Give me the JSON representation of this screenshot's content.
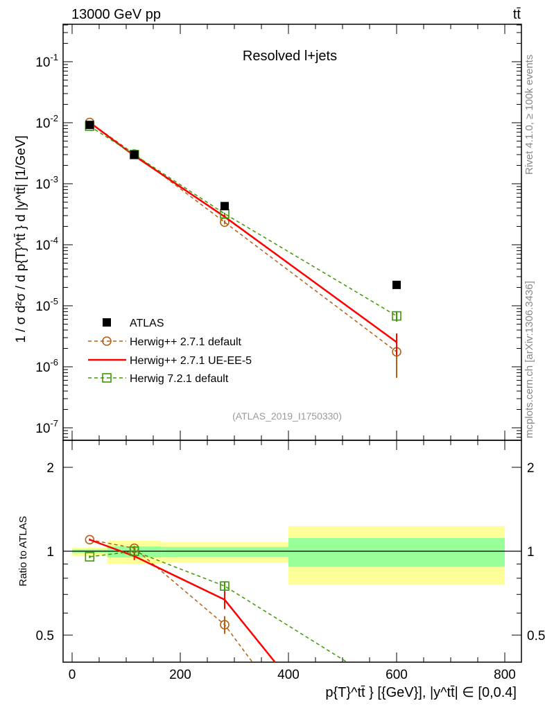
{
  "header": {
    "left": "13000 GeV pp",
    "right": "tt̄"
  },
  "side_labels": {
    "rivet": "Rivet 4.1.0, ≥ 100k events",
    "mcplots": "mcplots.cern.ch [arXiv:1306.3436]"
  },
  "chart_data": {
    "type": "line",
    "title": "Resolved l+jets",
    "analysis": "(ATLAS_2019_I1750330)",
    "xlabel": "p{T}^tt̄ } [{GeV}], |y^tt̄| ∈ [0,0.4]",
    "ylabel": "1 / σ d²σ / d p{T}^tt̄ } d |y^tt̄| [1/GeV]",
    "ratio_ylabel": "Ratio to ATLAS",
    "xlim": [
      -17,
      830
    ],
    "ylim": [
      4e-08,
      0.41
    ],
    "ratio_ylim": [
      0.4,
      2.5
    ],
    "xticks": [
      "0",
      "200",
      "400",
      "600",
      "800"
    ],
    "yticks": [
      "10^-1",
      "10^-2",
      "10^-3",
      "10^-4",
      "10^-5",
      "10^-6",
      "10^-7"
    ],
    "ratio_yticks": [
      "0.5",
      "1",
      "2"
    ],
    "bins": [
      [
        0,
        65
      ],
      [
        65,
        165
      ],
      [
        165,
        400
      ],
      [
        400,
        800
      ]
    ],
    "x": [
      32.5,
      115,
      282,
      600
    ],
    "legend_position": "bottom-left",
    "data": {
      "name": "ATLAS",
      "values": [
        0.0092,
        0.003,
        0.00043,
        2.2e-05
      ],
      "color": "#000000",
      "band_inner": [
        [
          0.985,
          1.015
        ],
        [
          0.95,
          1.04
        ],
        [
          0.955,
          1.036
        ],
        [
          0.88,
          1.115
        ]
      ],
      "band_outer": [
        [
          0.96,
          1.03
        ],
        [
          0.9,
          1.09
        ],
        [
          0.91,
          1.077
        ],
        [
          0.76,
          1.23
        ]
      ]
    },
    "series": [
      {
        "name": "Herwig++ 2.7.1 default",
        "color": "#b45f14",
        "marker": "circle",
        "style": "dashed",
        "ratio": [
          1.1,
          1.025,
          0.545,
          0.08
        ],
        "ratio_err": [
          0.01,
          0.02,
          0.04,
          0.05
        ]
      },
      {
        "name": "Herwig++ 2.7.1 UE-EE-5",
        "color": "#ff0000",
        "marker": "none",
        "style": "solid",
        "ratio": [
          1.1,
          0.96,
          0.67,
          0.115
        ],
        "ratio_err": [
          0.01,
          0.03,
          0.05,
          0.045
        ]
      },
      {
        "name": "Herwig 7.2.1 default",
        "color": "#3a9a00",
        "marker": "square",
        "style": "dashed",
        "ratio": [
          0.955,
          1.0,
          0.75,
          0.31
        ],
        "ratio_err": [
          0.01,
          0.02,
          0.03,
          0.06
        ]
      }
    ]
  }
}
